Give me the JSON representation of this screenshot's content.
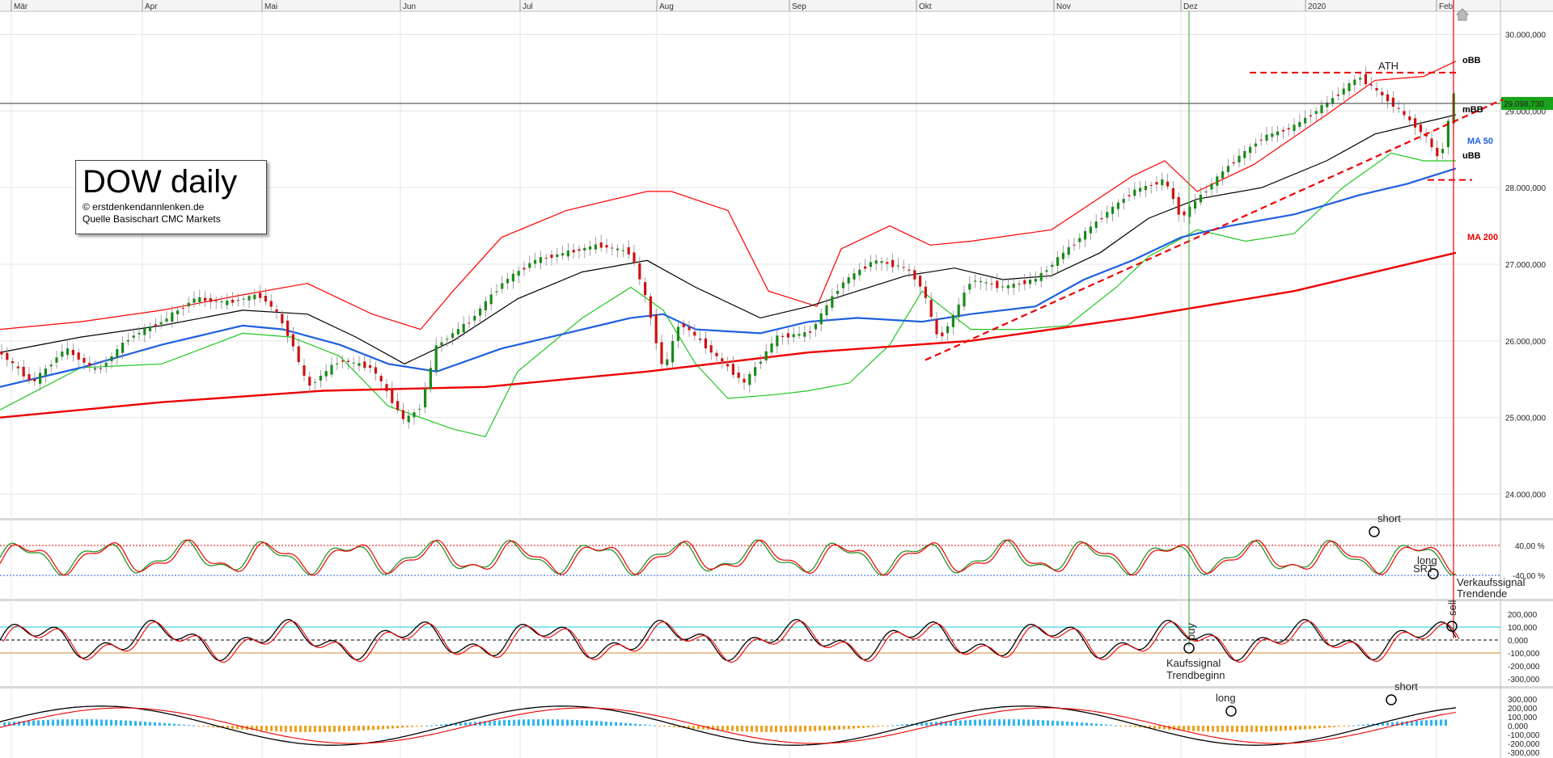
{
  "info": {
    "title": "DOW daily",
    "copyright": "© erstdenkendannlenken.de",
    "source": "Quelle Basischart CMC Markets"
  },
  "chart_data": {
    "type": "line",
    "months": [
      "Mär",
      "Apr",
      "Mai",
      "Jun",
      "Jul",
      "Aug",
      "Sep",
      "Okt",
      "Nov",
      "Dez",
      "2020",
      "Feb"
    ],
    "price_axis": [
      "30.000,000",
      "29.000,000",
      "28.000,000",
      "27.000,000",
      "26.000,000",
      "25.000,000",
      "24.000,000"
    ],
    "price_range": [
      23700,
      30300
    ],
    "current_price": "29.098,730",
    "osc1_labels": [
      "40,00 %",
      "-40,00 %"
    ],
    "osc2_labels": [
      "200,000",
      "100,000",
      "0,000",
      "-100,000",
      "-200,000",
      "-300,000"
    ],
    "osc3_labels": [
      "300,000",
      "200,000",
      "100,000",
      "0,000",
      "-100,000",
      "-200,000",
      "-300,000"
    ],
    "series": [
      {
        "name": "oBB",
        "color": "#ff0000",
        "values": [
          [
            0,
            26150
          ],
          [
            100,
            26250
          ],
          [
            200,
            26400
          ],
          [
            300,
            26600
          ],
          [
            380,
            26750
          ],
          [
            460,
            26350
          ],
          [
            520,
            26150
          ],
          [
            560,
            26650
          ],
          [
            620,
            27350
          ],
          [
            700,
            27700
          ],
          [
            800,
            27950
          ],
          [
            830,
            27950
          ],
          [
            900,
            27700
          ],
          [
            950,
            26650
          ],
          [
            1010,
            26450
          ],
          [
            1040,
            27200
          ],
          [
            1100,
            27500
          ],
          [
            1150,
            27250
          ],
          [
            1200,
            27300
          ],
          [
            1300,
            27450
          ],
          [
            1400,
            28150
          ],
          [
            1440,
            28350
          ],
          [
            1480,
            27950
          ],
          [
            1550,
            28300
          ],
          [
            1640,
            28950
          ],
          [
            1700,
            29400
          ],
          [
            1760,
            29450
          ],
          [
            1800,
            29650
          ]
        ]
      },
      {
        "name": "mBB",
        "color": "#000000",
        "values": [
          [
            0,
            25850
          ],
          [
            100,
            26050
          ],
          [
            200,
            26200
          ],
          [
            300,
            26400
          ],
          [
            380,
            26350
          ],
          [
            440,
            26050
          ],
          [
            500,
            25700
          ],
          [
            560,
            26000
          ],
          [
            640,
            26550
          ],
          [
            720,
            26900
          ],
          [
            800,
            27050
          ],
          [
            860,
            26700
          ],
          [
            940,
            26300
          ],
          [
            1000,
            26450
          ],
          [
            1060,
            26650
          ],
          [
            1120,
            26850
          ],
          [
            1180,
            26950
          ],
          [
            1240,
            26800
          ],
          [
            1300,
            26850
          ],
          [
            1360,
            27150
          ],
          [
            1420,
            27600
          ],
          [
            1480,
            27850
          ],
          [
            1560,
            28000
          ],
          [
            1640,
            28350
          ],
          [
            1700,
            28700
          ],
          [
            1760,
            28850
          ],
          [
            1800,
            28950
          ]
        ]
      },
      {
        "name": "uBB",
        "color": "#22c722",
        "values": [
          [
            0,
            25100
          ],
          [
            100,
            25650
          ],
          [
            200,
            25700
          ],
          [
            300,
            26100
          ],
          [
            360,
            26050
          ],
          [
            420,
            25800
          ],
          [
            480,
            25150
          ],
          [
            560,
            24850
          ],
          [
            600,
            24750
          ],
          [
            640,
            25600
          ],
          [
            720,
            26300
          ],
          [
            780,
            26700
          ],
          [
            820,
            26400
          ],
          [
            860,
            25700
          ],
          [
            900,
            25250
          ],
          [
            960,
            25300
          ],
          [
            1000,
            25350
          ],
          [
            1050,
            25450
          ],
          [
            1100,
            25950
          ],
          [
            1140,
            26650
          ],
          [
            1200,
            26150
          ],
          [
            1260,
            26150
          ],
          [
            1320,
            26200
          ],
          [
            1380,
            26700
          ],
          [
            1420,
            27100
          ],
          [
            1480,
            27450
          ],
          [
            1540,
            27300
          ],
          [
            1600,
            27400
          ],
          [
            1660,
            28000
          ],
          [
            1720,
            28450
          ],
          [
            1760,
            28350
          ],
          [
            1800,
            28350
          ]
        ]
      },
      {
        "name": "MA 50",
        "color": "#1f5fe0",
        "values": [
          [
            0,
            25400
          ],
          [
            100,
            25650
          ],
          [
            200,
            25950
          ],
          [
            300,
            26200
          ],
          [
            350,
            26150
          ],
          [
            420,
            25950
          ],
          [
            480,
            25700
          ],
          [
            540,
            25600
          ],
          [
            620,
            25900
          ],
          [
            700,
            26100
          ],
          [
            780,
            26300
          ],
          [
            820,
            26350
          ],
          [
            860,
            26150
          ],
          [
            940,
            26100
          ],
          [
            1000,
            26250
          ],
          [
            1060,
            26300
          ],
          [
            1140,
            26250
          ],
          [
            1200,
            26350
          ],
          [
            1280,
            26450
          ],
          [
            1340,
            26800
          ],
          [
            1400,
            27050
          ],
          [
            1460,
            27350
          ],
          [
            1520,
            27500
          ],
          [
            1600,
            27650
          ],
          [
            1680,
            27900
          ],
          [
            1740,
            28050
          ],
          [
            1800,
            28250
          ]
        ]
      },
      {
        "name": "MA 200",
        "color": "#ee0000",
        "values": [
          [
            0,
            25000
          ],
          [
            200,
            25200
          ],
          [
            400,
            25350
          ],
          [
            600,
            25400
          ],
          [
            800,
            25600
          ],
          [
            1000,
            25850
          ],
          [
            1200,
            26000
          ],
          [
            1400,
            26300
          ],
          [
            1600,
            26650
          ],
          [
            1800,
            27150
          ]
        ]
      },
      {
        "name": "price",
        "color": "#228B22",
        "values": [
          [
            0,
            25850
          ],
          [
            40,
            25450
          ],
          [
            80,
            25900
          ],
          [
            120,
            25600
          ],
          [
            160,
            26050
          ],
          [
            200,
            26250
          ],
          [
            240,
            26550
          ],
          [
            280,
            26500
          ],
          [
            320,
            26600
          ],
          [
            340,
            26400
          ],
          [
            360,
            26000
          ],
          [
            380,
            25400
          ],
          [
            420,
            25750
          ],
          [
            460,
            25650
          ],
          [
            500,
            24950
          ],
          [
            520,
            25150
          ],
          [
            540,
            25950
          ],
          [
            580,
            26250
          ],
          [
            620,
            26750
          ],
          [
            660,
            27050
          ],
          [
            700,
            27150
          ],
          [
            740,
            27250
          ],
          [
            780,
            27150
          ],
          [
            800,
            26500
          ],
          [
            820,
            25600
          ],
          [
            840,
            26250
          ],
          [
            880,
            25850
          ],
          [
            920,
            25450
          ],
          [
            960,
            26050
          ],
          [
            1000,
            26100
          ],
          [
            1040,
            26750
          ],
          [
            1080,
            27050
          ],
          [
            1120,
            26950
          ],
          [
            1140,
            26700
          ],
          [
            1160,
            26000
          ],
          [
            1180,
            26350
          ],
          [
            1200,
            26800
          ],
          [
            1240,
            26700
          ],
          [
            1280,
            26800
          ],
          [
            1320,
            27200
          ],
          [
            1360,
            27600
          ],
          [
            1400,
            27950
          ],
          [
            1440,
            28100
          ],
          [
            1460,
            27600
          ],
          [
            1480,
            27850
          ],
          [
            1520,
            28300
          ],
          [
            1560,
            28650
          ],
          [
            1600,
            28800
          ],
          [
            1640,
            29100
          ],
          [
            1680,
            29450
          ],
          [
            1720,
            29100
          ],
          [
            1760,
            28700
          ],
          [
            1780,
            28350
          ],
          [
            1800,
            29350
          ]
        ]
      }
    ],
    "annotations": {
      "ath": "ATH",
      "short_1": "short",
      "long_1": "long",
      "srt": "SRT",
      "sell": "sell",
      "buy": "buy",
      "buy_signal_1": "Kaufssignal",
      "buy_signal_2": "Trendbeginn",
      "sell_signal_1": "Verkaufssignal",
      "sell_signal_2": "Trendende",
      "long_2": "long",
      "short_2": "short"
    }
  }
}
